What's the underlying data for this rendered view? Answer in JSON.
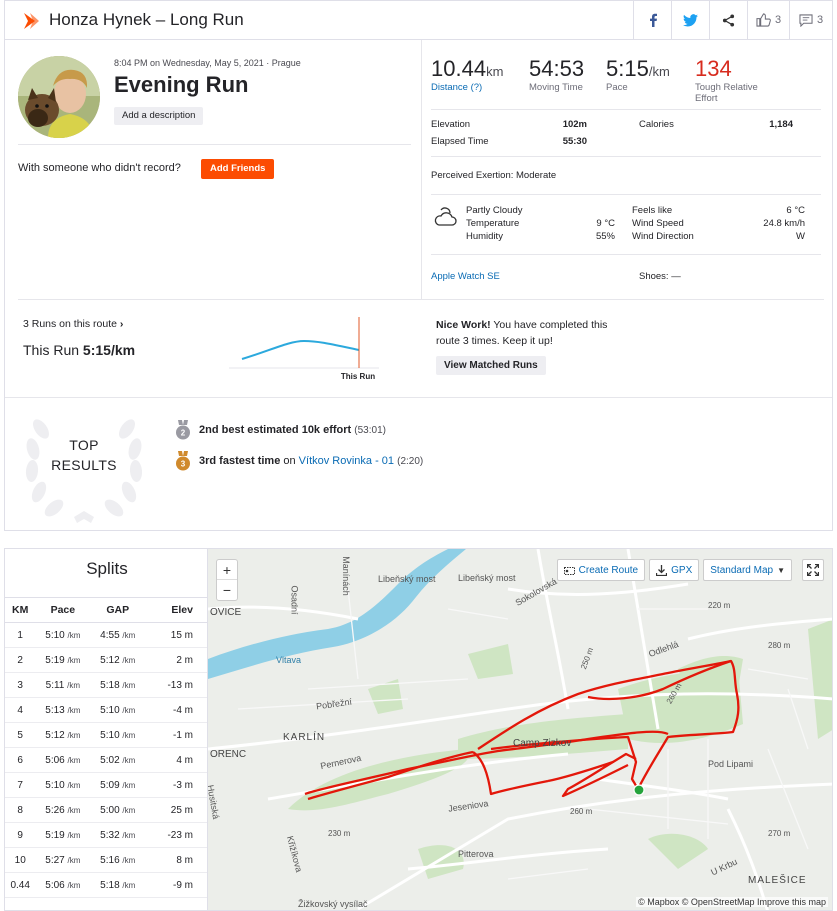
{
  "header": {
    "title": "Honza Hynek – Long Run",
    "kudos_count": "3",
    "comments_count": "3"
  },
  "activity": {
    "date_line": "8:04 PM on Wednesday, May 5, 2021 · Prague",
    "title": "Evening Run",
    "add_description": "Add a description",
    "friends_prompt": "With someone who didn't record?",
    "add_friends": "Add Friends"
  },
  "stats": {
    "distance": "10.44",
    "distance_unit": "km",
    "distance_label": "Distance (?)",
    "moving_time": "54:53",
    "moving_time_label": "Moving Time",
    "pace": "5:15",
    "pace_unit": "/km",
    "pace_label": "Pace",
    "effort": "134",
    "effort_label_1": "Tough Relative",
    "effort_label_2": "Effort",
    "elevation_label": "Elevation",
    "elevation": "102m",
    "calories_label": "Calories",
    "calories": "1,184",
    "elapsed_label": "Elapsed Time",
    "elapsed": "55:30",
    "exertion_label": "Perceived Exertion:",
    "exertion": "Moderate"
  },
  "weather": {
    "condition": "Partly Cloudy",
    "temperature_label": "Temperature",
    "temperature": "9 °C",
    "humidity_label": "Humidity",
    "humidity": "55%",
    "feels_like_label": "Feels like",
    "feels_like": "6 °C",
    "wind_speed_label": "Wind Speed",
    "wind_speed": "24.8 km/h",
    "wind_direction_label": "Wind Direction",
    "wind_direction": "W"
  },
  "gear": {
    "device": "Apple Watch SE",
    "shoes_label": "Shoes:",
    "shoes": "—"
  },
  "matched": {
    "runs_link": "3 Runs on this route",
    "this_run_label": "This Run",
    "this_run_pace": "5:15/km",
    "chart_marker": "This Run",
    "nice_bold": "Nice Work!",
    "nice_text": " You have completed this route 3 times. Keep it up!",
    "view_button": "View Matched Runs"
  },
  "top_results": {
    "line1": "TOP",
    "line2": "RESULTS",
    "items": [
      {
        "rank": "2",
        "text": "2nd best estimated 10k effort",
        "time": "(53:01)",
        "medal_color": "#9a9aa2"
      },
      {
        "rank": "3",
        "text": "3rd fastest time",
        "on": " on ",
        "segment": "Vítkov Rovinka - 01",
        "time": "(2:20)",
        "medal_color": "#d08a2c"
      }
    ]
  },
  "splits": {
    "title": "Splits",
    "headers": [
      "KM",
      "Pace",
      "GAP",
      "Elev"
    ],
    "unit_pace": "/km",
    "rows": [
      {
        "km": "1",
        "pace": "5:10",
        "gap": "4:55",
        "elev": "15 m"
      },
      {
        "km": "2",
        "pace": "5:19",
        "gap": "5:12",
        "elev": "2 m"
      },
      {
        "km": "3",
        "pace": "5:11",
        "gap": "5:18",
        "elev": "-13 m"
      },
      {
        "km": "4",
        "pace": "5:13",
        "gap": "5:10",
        "elev": "-4 m"
      },
      {
        "km": "5",
        "pace": "5:12",
        "gap": "5:10",
        "elev": "-1 m"
      },
      {
        "km": "6",
        "pace": "5:06",
        "gap": "5:02",
        "elev": "4 m"
      },
      {
        "km": "7",
        "pace": "5:10",
        "gap": "5:09",
        "elev": "-3 m"
      },
      {
        "km": "8",
        "pace": "5:26",
        "gap": "5:00",
        "elev": "25 m"
      },
      {
        "km": "9",
        "pace": "5:19",
        "gap": "5:32",
        "elev": "-23 m"
      },
      {
        "km": "10",
        "pace": "5:27",
        "gap": "5:16",
        "elev": "8 m"
      },
      {
        "km": "0.44",
        "pace": "5:06",
        "gap": "5:18",
        "elev": "-9 m"
      }
    ]
  },
  "map": {
    "zoom_in": "+",
    "zoom_out": "−",
    "create_route": "Create Route",
    "gpx": "GPX",
    "map_style": "Standard Map",
    "attribution": "© Mapbox © OpenStreetMap Improve this map",
    "labels": {
      "liben_bridge": "Libeňský most",
      "liben_bridge2": "Libeňský most",
      "vltava": "Vltava",
      "karlin": "KARLÍN",
      "ovice": "OVICE",
      "orenc": "ORENC",
      "pobrezni": "Pobřežní",
      "pernerova": "Pernerova",
      "camp_zizkov": "Camp Zizkov",
      "jeseniova": "Jeseniova",
      "pitterova": "Pitterova",
      "pod_lipami": "Pod Lipami",
      "u_krbu": "U Krbu",
      "malesice": "MALEŠICE",
      "zizkovsky": "Žižkovský vysílač",
      "sokolovska": "Sokolovská",
      "odlehla": "Odlehlá",
      "manesova": "Manínách",
      "osadni": "Osadní",
      "krizikova": "Křižíkova",
      "husitska": "Husitská",
      "e220": "220 m",
      "e260": "260 m",
      "e250": "250 m",
      "e260b": "260 m",
      "e280": "280 m",
      "e230": "230 m",
      "e270": "270 m"
    }
  }
}
